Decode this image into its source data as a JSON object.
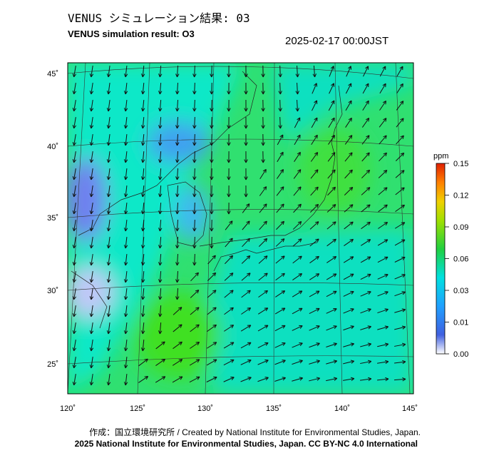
{
  "header": {
    "title": "VENUS シミュレーション結果: 03",
    "subtitle": "VENUS simulation result: O3",
    "timestamp": "2025-02-17 00:00JST"
  },
  "map": {
    "lon_labels": [
      "120˚",
      "125˚",
      "130˚",
      "135˚",
      "140˚",
      "145˚"
    ],
    "lat_labels": [
      "45˚",
      "40˚",
      "35˚",
      "30˚",
      "25˚"
    ]
  },
  "colorbar": {
    "unit": "ppm",
    "ticks": [
      "0.15",
      "0.12",
      "0.09",
      "0.06",
      "0.03",
      "0.01",
      "0.00"
    ]
  },
  "footer": {
    "credit": "作成：国立環境研究所 / Created by National Institute for Environmental Studies, Japan.",
    "license": "2025 National Institute for Environmental Studies, Japan. CC BY-NC 4.0 International"
  }
}
